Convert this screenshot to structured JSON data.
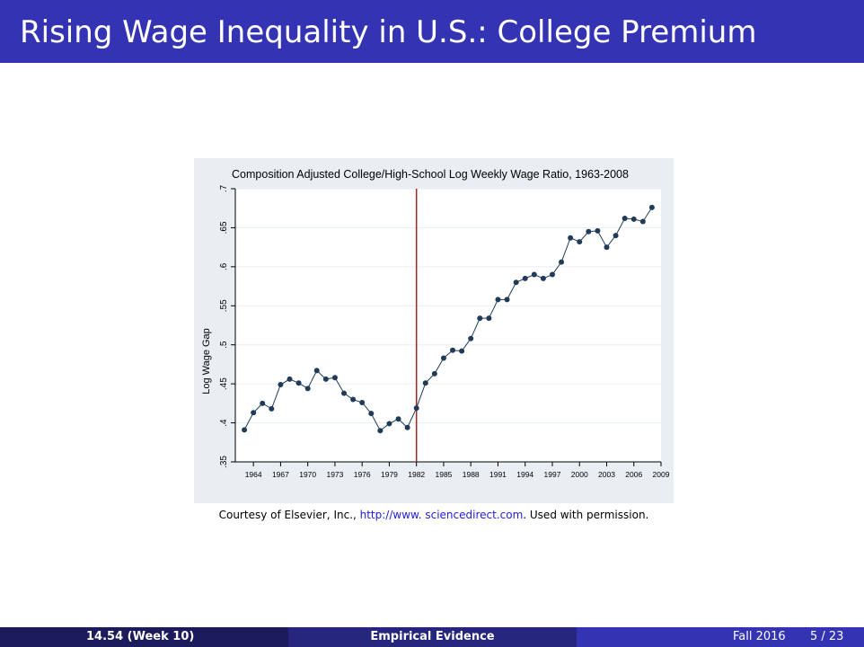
{
  "slide": {
    "title": "Rising Wage Inequality in U.S.: College Premium"
  },
  "caption": {
    "prefix": "Courtesy of Elsevier, Inc., ",
    "link1": "http://www.",
    "link2": " sciencedirect.com",
    "suffix": ". Used with permission."
  },
  "footer": {
    "course": "14.54  (Week 10)",
    "section": "Empirical Evidence",
    "date": "Fall 2016",
    "page": "5 / 23"
  },
  "colors": {
    "header": "#3333b3",
    "line": "#1f3b57",
    "marker": "#1f3b57",
    "vline": "#b22222",
    "grid": "#e6eef2",
    "plot_bg": "#ffffff",
    "figure_bg": "#e9eef2"
  },
  "chart_data": {
    "type": "line",
    "title": "Composition Adjusted College/High-School Log Weekly Wage Ratio, 1963-2008",
    "xlabel": "",
    "ylabel": "Log Wage Gap",
    "xlim": [
      1962,
      2009
    ],
    "ylim": [
      0.35,
      0.7
    ],
    "xticks": [
      1964,
      1967,
      1970,
      1973,
      1976,
      1979,
      1982,
      1985,
      1988,
      1991,
      1994,
      1997,
      2000,
      2003,
      2006,
      2009
    ],
    "xtick_labels": [
      "1964",
      "1967",
      "1970",
      "1973",
      "1976",
      "1979",
      "1982",
      "1985",
      "1988",
      "1991",
      "1994",
      "1997",
      "2000",
      "2003",
      "2006",
      "2009"
    ],
    "yticks": [
      0.35,
      0.4,
      0.45,
      0.5,
      0.55,
      0.6,
      0.65,
      0.7
    ],
    "ytick_labels": [
      ".35",
      ".4",
      ".45",
      ".5",
      ".55",
      ".6",
      ".65",
      ".7"
    ],
    "vline_x": 1982,
    "grid": true,
    "series": [
      {
        "x": [
          1963,
          1964,
          1965,
          1966,
          1967,
          1968,
          1969,
          1970,
          1971,
          1972,
          1973,
          1974,
          1975,
          1976,
          1977,
          1978,
          1979,
          1980,
          1981,
          1982,
          1983,
          1984,
          1985,
          1986,
          1987,
          1988,
          1989,
          1990,
          1991,
          1992,
          1993,
          1994,
          1995,
          1996,
          1997,
          1998,
          1999,
          2000,
          2001,
          2002,
          2003,
          2004,
          2005,
          2006,
          2007,
          2008
        ],
        "y": [
          0.391,
          0.413,
          0.425,
          0.418,
          0.449,
          0.456,
          0.451,
          0.444,
          0.467,
          0.456,
          0.458,
          0.438,
          0.43,
          0.426,
          0.412,
          0.39,
          0.399,
          0.405,
          0.394,
          0.419,
          0.451,
          0.463,
          0.483,
          0.493,
          0.492,
          0.508,
          0.534,
          0.534,
          0.558,
          0.558,
          0.58,
          0.585,
          0.59,
          0.585,
          0.59,
          0.606,
          0.637,
          0.632,
          0.645,
          0.646,
          0.625,
          0.64,
          0.662,
          0.661,
          0.658,
          0.676
        ]
      }
    ]
  }
}
